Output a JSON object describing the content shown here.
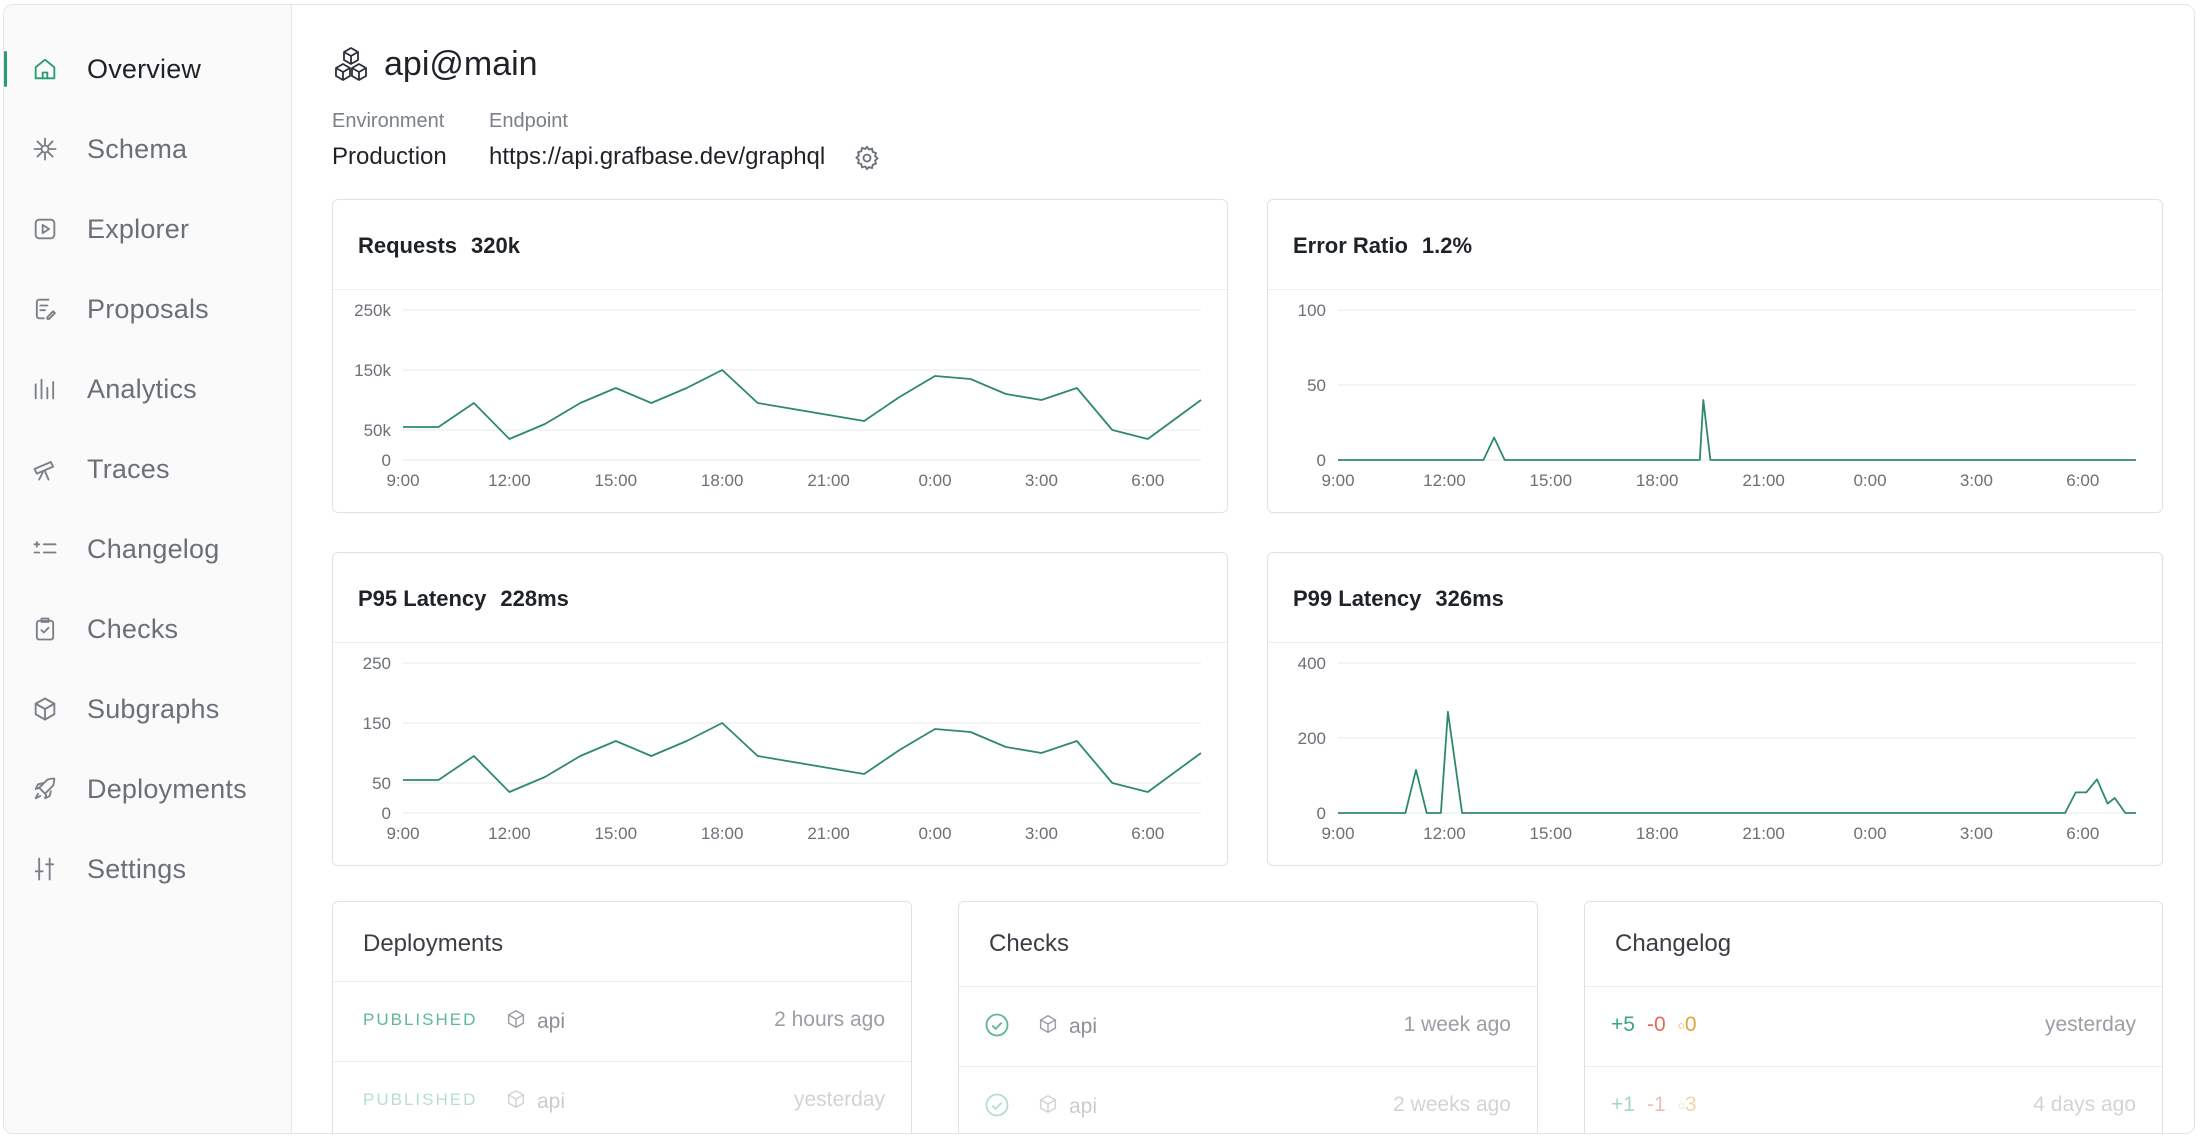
{
  "sidebar": {
    "items": [
      {
        "label": "Overview",
        "icon": "home-icon",
        "active": true
      },
      {
        "label": "Schema",
        "icon": "schema-icon"
      },
      {
        "label": "Explorer",
        "icon": "play-icon"
      },
      {
        "label": "Proposals",
        "icon": "proposal-icon"
      },
      {
        "label": "Analytics",
        "icon": "analytics-icon"
      },
      {
        "label": "Traces",
        "icon": "telescope-icon"
      },
      {
        "label": "Changelog",
        "icon": "changelog-icon"
      },
      {
        "label": "Checks",
        "icon": "clipboard-check-icon"
      },
      {
        "label": "Subgraphs",
        "icon": "cube-icon"
      },
      {
        "label": "Deployments",
        "icon": "rocket-icon"
      },
      {
        "label": "Settings",
        "icon": "sliders-icon"
      }
    ]
  },
  "header": {
    "title": "api@main",
    "environment_label": "Environment",
    "environment_value": "Production",
    "endpoint_label": "Endpoint",
    "endpoint_value": "https://api.grafbase.dev/graphql"
  },
  "colors": {
    "accent": "#2a9d6f",
    "line": "#2f8a68"
  },
  "chart_data": [
    {
      "type": "line",
      "title": "Requests",
      "summary": "320k",
      "x_ticks": [
        "9:00",
        "12:00",
        "15:00",
        "18:00",
        "21:00",
        "0:00",
        "3:00",
        "6:00"
      ],
      "y_ticks": [
        "0",
        "50k",
        "150k",
        "250k"
      ],
      "ylim": [
        0,
        250000
      ],
      "grid": true,
      "x": [
        9,
        10,
        11,
        12,
        13,
        14,
        15,
        16,
        17,
        18,
        19,
        20,
        21,
        22,
        23,
        24,
        25,
        26,
        27,
        28,
        29,
        30,
        31.5
      ],
      "values": [
        55000,
        55000,
        95000,
        35000,
        60000,
        95000,
        120000,
        95000,
        120000,
        150000,
        95000,
        85000,
        75000,
        65000,
        105000,
        140000,
        135000,
        110000,
        100000,
        120000,
        50000,
        35000,
        100000
      ]
    },
    {
      "type": "line",
      "title": "Error Ratio",
      "summary": "1.2%",
      "x_ticks": [
        "9:00",
        "12:00",
        "15:00",
        "18:00",
        "21:00",
        "0:00",
        "3:00",
        "6:00"
      ],
      "y_ticks": [
        "0",
        "50",
        "100"
      ],
      "ylim": [
        0,
        100
      ],
      "grid": true,
      "x": [
        9,
        13.1,
        13.4,
        13.7,
        19.2,
        19.3,
        19.5,
        31.5
      ],
      "values": [
        0,
        0,
        15,
        0,
        0,
        40,
        0,
        0
      ]
    },
    {
      "type": "line",
      "title": "P95 Latency",
      "summary": "228ms",
      "x_ticks": [
        "9:00",
        "12:00",
        "15:00",
        "18:00",
        "21:00",
        "0:00",
        "3:00",
        "6:00"
      ],
      "y_ticks": [
        "0",
        "50",
        "150",
        "250"
      ],
      "ylim": [
        0,
        250
      ],
      "grid": true,
      "x": [
        9,
        10,
        11,
        12,
        13,
        14,
        15,
        16,
        17,
        18,
        19,
        20,
        21,
        22,
        23,
        24,
        25,
        26,
        27,
        28,
        29,
        30,
        31.5
      ],
      "values": [
        55,
        55,
        95,
        35,
        60,
        95,
        120,
        95,
        120,
        150,
        95,
        85,
        75,
        65,
        105,
        140,
        135,
        110,
        100,
        120,
        50,
        35,
        100
      ]
    },
    {
      "type": "line",
      "title": "P99 Latency",
      "summary": "326ms",
      "x_ticks": [
        "9:00",
        "12:00",
        "15:00",
        "18:00",
        "21:00",
        "0:00",
        "3:00",
        "6:00"
      ],
      "y_ticks": [
        "0",
        "200",
        "400"
      ],
      "ylim": [
        0,
        400
      ],
      "grid": true,
      "x": [
        9,
        10.9,
        11.2,
        11.5,
        11.9,
        12.1,
        12.5,
        29.5,
        29.8,
        30.1,
        30.4,
        30.7,
        30.9,
        31.2,
        31.5
      ],
      "values": [
        0,
        0,
        115,
        0,
        0,
        270,
        0,
        0,
        55,
        55,
        90,
        25,
        40,
        0,
        0
      ]
    }
  ],
  "panels": {
    "deployments": {
      "title": "Deployments",
      "rows": [
        {
          "status": "PUBLISHED",
          "service": "api",
          "time": "2 hours ago"
        },
        {
          "status": "PUBLISHED",
          "service": "api",
          "time": "yesterday"
        }
      ]
    },
    "checks": {
      "title": "Checks",
      "rows": [
        {
          "service": "api",
          "time": "1 week ago"
        },
        {
          "service": "api",
          "time": "2 weeks ago"
        }
      ]
    },
    "changelog": {
      "title": "Changelog",
      "rows": [
        {
          "added": "+5",
          "removed": "-0",
          "modified": "0",
          "time": "yesterday"
        },
        {
          "added": "+1",
          "removed": "-1",
          "modified": "3",
          "time": "4 days ago"
        }
      ]
    }
  }
}
